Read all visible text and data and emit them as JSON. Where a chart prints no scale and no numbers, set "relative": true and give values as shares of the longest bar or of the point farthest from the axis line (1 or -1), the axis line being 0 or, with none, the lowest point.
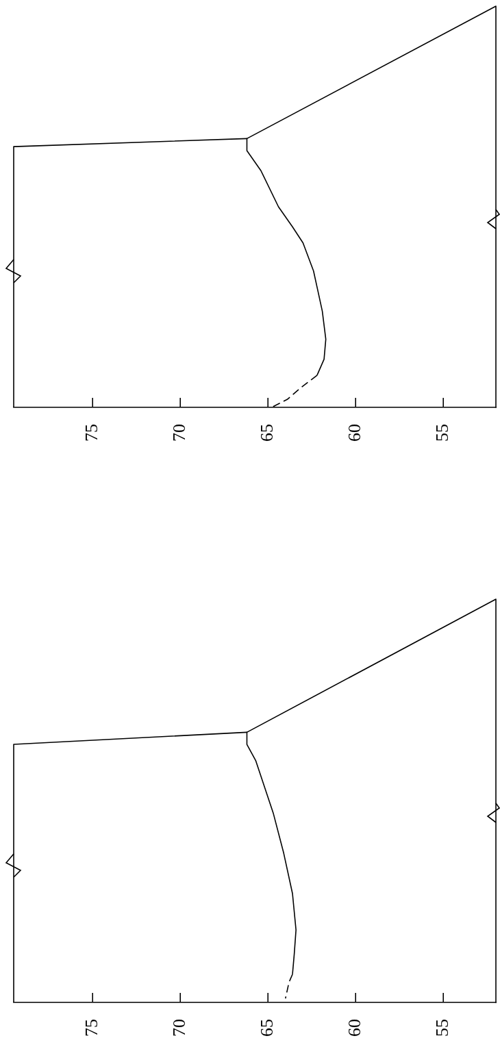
{
  "chart_data": [
    {
      "type": "line",
      "relative": true,
      "xlim": [
        79.5,
        52
      ],
      "xticks": [
        75,
        70,
        65,
        60,
        55
      ],
      "series": [
        {
          "color": "#000000",
          "line_style": "solid",
          "x": [
            79.5,
            79.5,
            66.2,
            52.0,
            52.0
          ],
          "values": [
            0,
            0.65,
            0.67,
            1,
            0
          ]
        },
        {
          "color": "#000000",
          "line_style": "solid",
          "x": [
            66.2,
            66.2,
            65.4,
            64.4,
            63.6,
            63.0,
            62.4,
            62.2,
            61.9,
            61.7,
            61.8,
            62.2
          ],
          "values": [
            0.67,
            0.64,
            0.59,
            0.5,
            0.45,
            0.41,
            0.34,
            0.3,
            0.24,
            0.17,
            0.12,
            0.08
          ]
        },
        {
          "color": "#000000",
          "line_style": "dashed",
          "x": [
            62.2,
            63.1,
            63.9,
            64.8
          ],
          "values": [
            0.08,
            0.05,
            0.02,
            0
          ]
        }
      ]
    },
    {
      "type": "line",
      "relative": true,
      "xlim": [
        79.5,
        52
      ],
      "xticks": [
        75,
        70,
        65,
        60,
        55
      ],
      "series": [
        {
          "color": "#000000",
          "line_style": "solid",
          "x": [
            79.5,
            79.5,
            66.2,
            52.0,
            52.0
          ],
          "values": [
            0,
            0.64,
            0.67,
            1,
            0
          ]
        },
        {
          "color": "#000000",
          "line_style": "solid",
          "x": [
            66.2,
            66.2,
            65.7,
            64.7,
            64.1,
            63.6,
            63.4,
            63.5,
            63.6
          ],
          "values": [
            0.67,
            0.64,
            0.6,
            0.47,
            0.37,
            0.27,
            0.18,
            0.12,
            0.07
          ]
        },
        {
          "color": "#000000",
          "line_style": "dashed",
          "x": [
            63.6,
            63.8,
            64.0
          ],
          "values": [
            0.07,
            0.05,
            0.01
          ]
        }
      ]
    }
  ]
}
